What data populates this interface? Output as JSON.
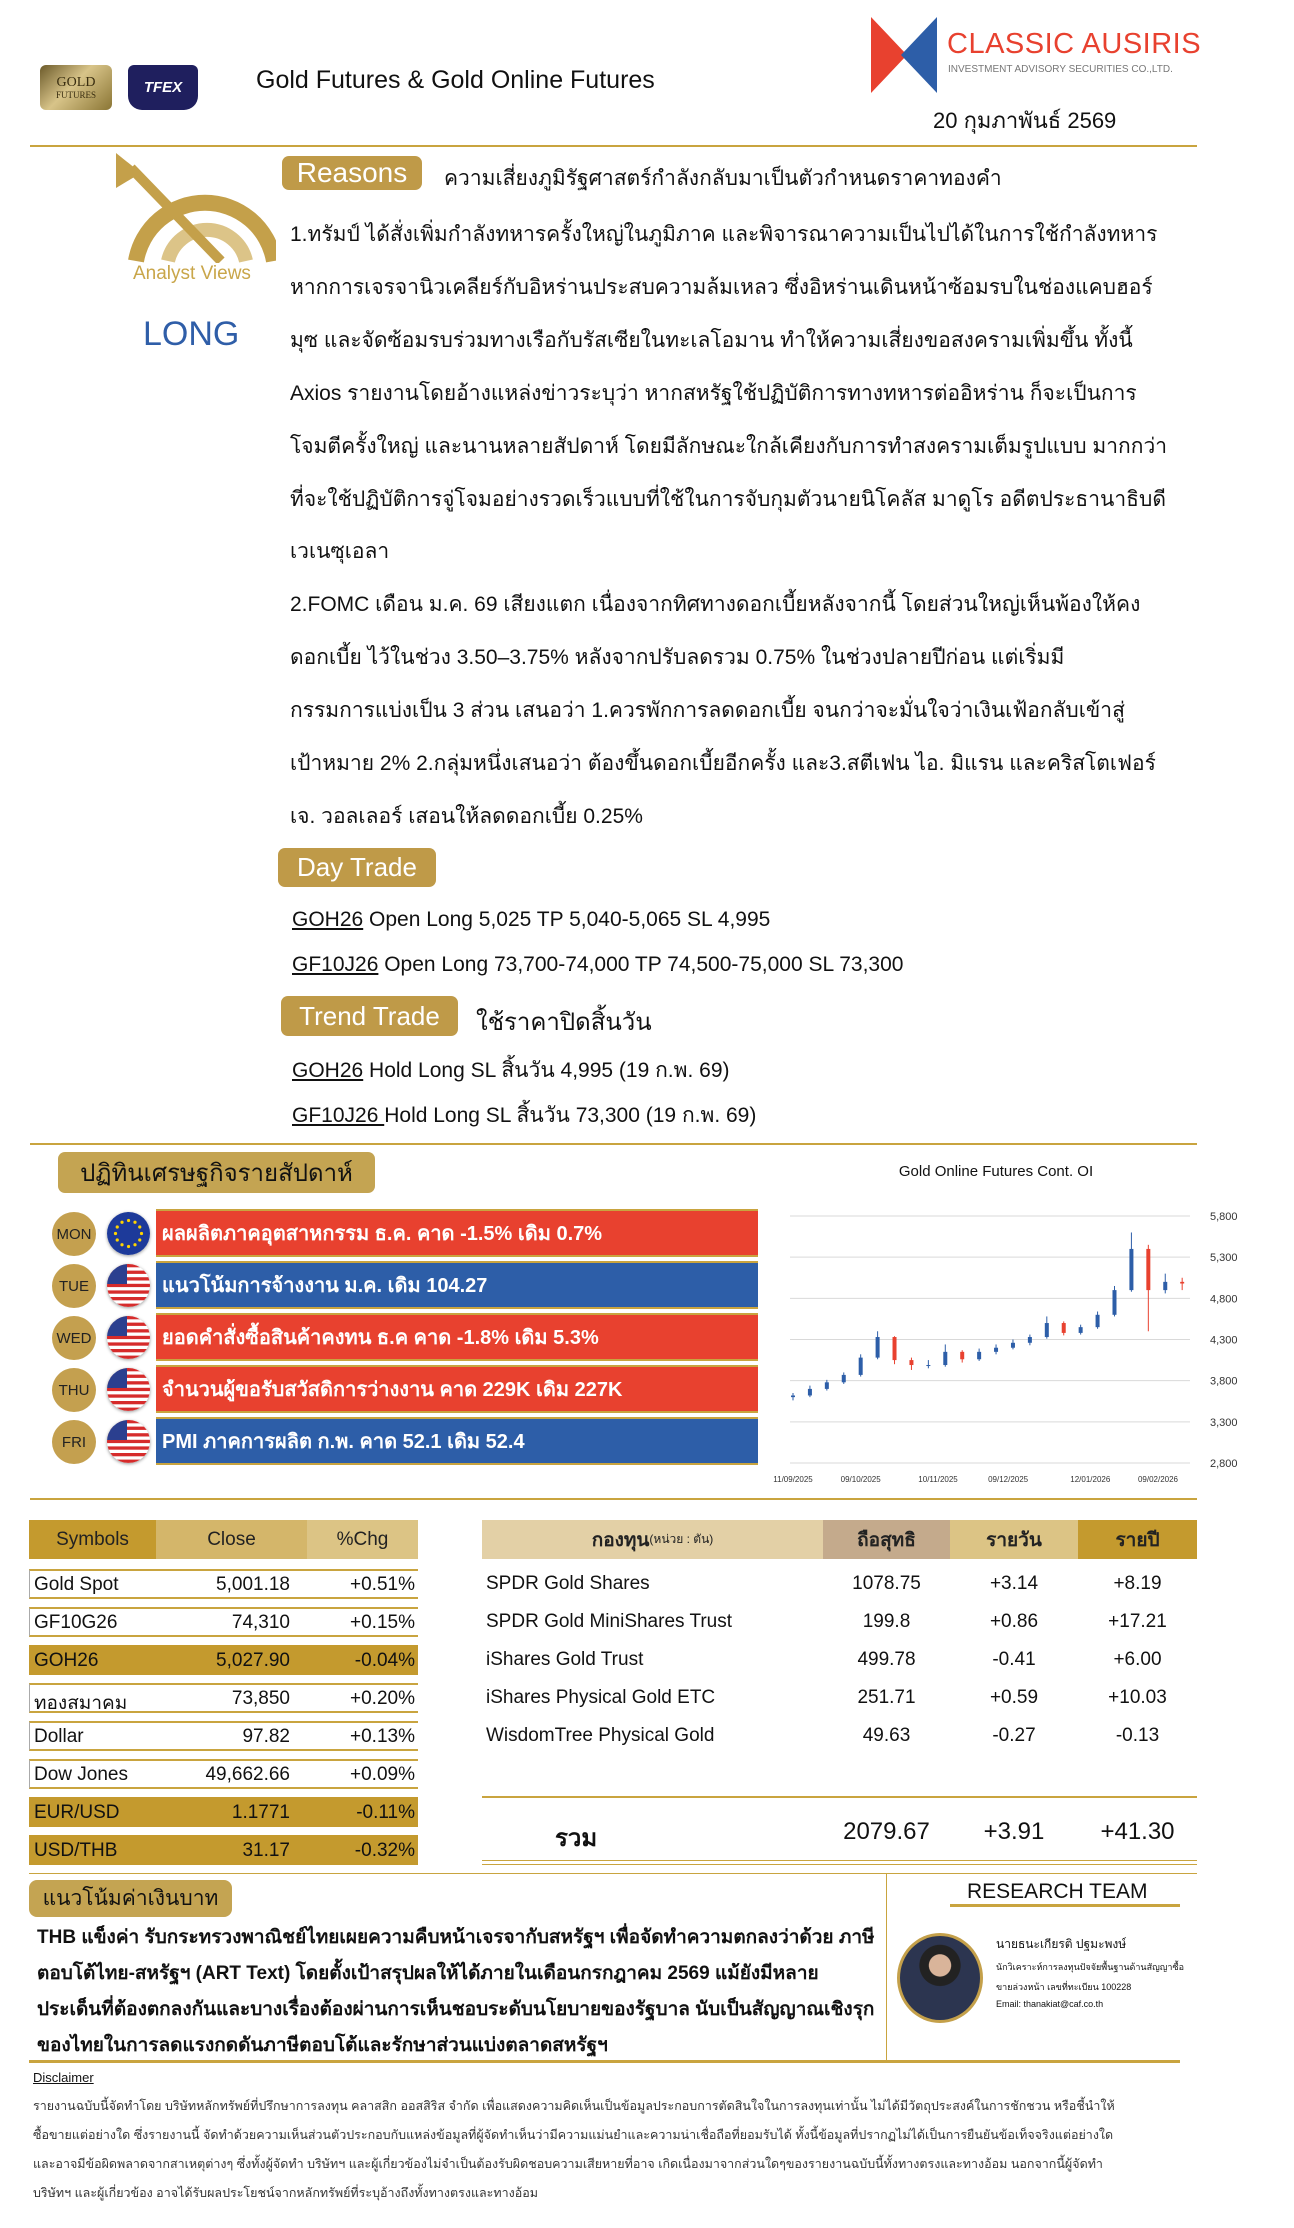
{
  "header": {
    "title": "Gold Futures & Gold Online Futures",
    "gold_futures_logo_text": "GOLD FUTURES TFEX",
    "tfex_logo_text": "TFEX",
    "company_name": "CLASSIC AUSIRIS",
    "company_sub": "INVESTMENT ADVISORY SECURITIES CO.,LTD.",
    "date": "20 กุมภาพันธ์ 2569"
  },
  "analyst": {
    "icon_label": "Analyst Views",
    "view": "LONG",
    "view_color": "#2f5ea8"
  },
  "reasons": {
    "badge": "Reasons",
    "headline": "ความเสี่ยงภูมิรัฐศาสตร์กำลังกลับมาเป็นตัวกำหนดราคาทองคำ",
    "lines": [
      "1.ทรัมป์ ได้สั่งเพิ่มกำลังทหารครั้งใหญ่ในภูมิภาค และพิจารณาความเป็นไปได้ในการใช้กำลังทหาร",
      "หากการเจรจานิวเคลียร์กับอิหร่านประสบความล้มเหลว  ซึ่งอิหร่านเดินหน้าซ้อมรบในช่องแคบฮอร์",
      "มุซ และจัดซ้อมรบร่วมทางเรือกับรัสเซียในทะเลโอมาน ทำให้ความเสี่ยงขอสงครามเพิ่มขึ้น  ทั้งนี้",
      "Axios  รายงานโดยอ้างแหล่งข่าวระบุว่า หากสหรัฐใช้ปฏิบัติการทางทหารต่ออิหร่าน ก็จะเป็นการ",
      "โจมตีครั้งใหญ่ และนานหลายสัปดาห์ โดยมีลักษณะใกล้เคียงกับการทำสงครามเต็มรูปแบบ มากกว่า",
      "ที่จะใช้ปฏิบัติการจู่โจมอย่างรวดเร็วแบบที่ใช้ในการจับกุมตัวนายนิโคลัส มาดูโร อดีตประธานาธิบดี",
      "เวเนซุเอลา",
      "2.FOMC เดือน ม.ค. 69 เสียงแตก เนื่องจากทิศทางดอกเบี้ยหลังจากนี้ โดยส่วนใหญ่เห็นพ้องให้คง",
      "ดอกเบี้ย  ไว้ในช่วง 3.50–3.75% หลังจากปรับลดรวม 0.75% ในช่วงปลายปีก่อน แต่เริ่มมี",
      "กรรมการแบ่งเป็น 3 ส่วน เสนอว่า 1.ควรพักการลดดอกเบี้ย จนกว่าจะมั่นใจว่าเงินเฟ้อกลับเข้าสู่",
      "เป้าหมาย 2% 2.กลุ่มหนึ่งเสนอว่า ต้องขึ้นดอกเบี้ยอีกครั้ง และ3.สตีเฟน ไอ. มิแรน และคริสโตเฟอร์",
      "เจ. วอลเลอร์ เสอนให้ลดดอกเบี้ย 0.25%"
    ]
  },
  "day_trade": {
    "badge": "Day Trade",
    "items": [
      {
        "symbol": "GOH26",
        "text": " Open Long 5,025 TP 5,040-5,065  SL 4,995"
      },
      {
        "symbol": "GF10J26",
        "text": " Open Long 73,700-74,000  TP 74,500-75,000  SL 73,300"
      }
    ]
  },
  "trend_trade": {
    "badge": "Trend Trade",
    "note": "ใช้ราคาปิดสิ้นวัน",
    "items": [
      {
        "symbol": "GOH26",
        "text": " Hold Long SL สิ้นวัน 4,995 (19 ก.พ. 69)"
      },
      {
        "symbol": "GF10J26 ",
        "text": "Hold Long SL สิ้นวัน 73,300  (19 ก.พ. 69)"
      }
    ]
  },
  "calendar": {
    "title": "ปฏิทินเศรษฐกิจรายสัปดาห์",
    "rows": [
      {
        "day": "MON",
        "flag": "eu-flag",
        "color": "#e8412f",
        "text": "ผลผลิตภาคอุตสาหกรรม ธ.ค. คาด -1.5% เดิม 0.7%"
      },
      {
        "day": "TUE",
        "flag": "us-flag",
        "color": "#2d5ea8",
        "text": "แนวโน้มการจ้างงาน ม.ค.  เดิม 104.27"
      },
      {
        "day": "WED",
        "flag": "us-flag",
        "color": "#e8412f",
        "text": "ยอดคำสั่งซื้อสินค้าคงทน ธ.ค คาด -1.8% เดิม 5.3%"
      },
      {
        "day": "THU",
        "flag": "us-flag",
        "color": "#e8412f",
        "text": "จำนวนผู้ขอรับสวัสดิการว่างงาน คาด 229K เดิม 227K"
      },
      {
        "day": "FRI",
        "flag": "us-flag",
        "color": "#2d5ea8",
        "text": "PMI ภาคการผลิต ก.พ.  คาด 52.1 เดิม 52.4"
      }
    ]
  },
  "chart_data": {
    "type": "candlestick",
    "title": "Gold Online Futures Cont. OI",
    "ylim": [
      2800,
      5800
    ],
    "yticks": [
      "5,800",
      "5,300",
      "4,800",
      "4,300",
      "3,800",
      "3,300",
      "2,800"
    ],
    "ytick_values": [
      5800,
      5300,
      4800,
      4300,
      3800,
      3300,
      2800
    ],
    "xticks": [
      "11/09/2025",
      "09/10/2025",
      "10/11/2025",
      "09/12/2025",
      "12/01/2026",
      "09/02/2026"
    ],
    "grid": true,
    "up_color": "#2d5ea8",
    "down_color": "#e8412f",
    "dates": [
      "11/09/2025",
      "18/09/2025",
      "25/09/2025",
      "02/10/2025",
      "09/10/2025",
      "16/10/2025",
      "23/10/2025",
      "30/10/2025",
      "06/11/2025",
      "13/11/2025",
      "20/11/2025",
      "27/11/2025",
      "04/12/2025",
      "11/12/2025",
      "18/12/2025",
      "25/12/2025",
      "01/01/2026",
      "08/01/2026",
      "15/01/2026",
      "22/01/2026",
      "29/01/2026",
      "05/02/2026",
      "12/02/2026",
      "19/02/2026"
    ],
    "open": [
      3600,
      3620,
      3700,
      3780,
      3870,
      4080,
      4330,
      4050,
      3990,
      3990,
      4150,
      4060,
      4150,
      4200,
      4260,
      4330,
      4500,
      4380,
      4450,
      4600,
      4900,
      5400,
      4900,
      5000
    ],
    "close": [
      3620,
      3700,
      3780,
      3870,
      4080,
      4330,
      4050,
      3990,
      3990,
      4150,
      4060,
      4150,
      4200,
      4260,
      4330,
      4500,
      4380,
      4450,
      4600,
      4900,
      5400,
      4900,
      5000,
      4980
    ],
    "high": [
      3650,
      3740,
      3810,
      3900,
      4120,
      4400,
      4340,
      4080,
      4050,
      4240,
      4170,
      4190,
      4240,
      4300,
      4360,
      4580,
      4520,
      4480,
      4640,
      4950,
      5600,
      5450,
      5100,
      5050
    ],
    "low": [
      3560,
      3600,
      3680,
      3760,
      3850,
      4060,
      4000,
      3930,
      3950,
      3970,
      4020,
      4040,
      4120,
      4180,
      4230,
      4310,
      4350,
      4360,
      4430,
      4580,
      4880,
      4400,
      4860,
      4900
    ]
  },
  "market_table": {
    "headers": [
      "Symbols",
      "Close",
      "%Chg"
    ],
    "header_colors": [
      "#c49a2e",
      "#d4b66a",
      "#dcc485"
    ],
    "highlight_color": "#c49a2e",
    "rows": [
      {
        "symbol": "Gold Spot",
        "close": "5,001.18",
        "chg": "+0.51%",
        "highlight": false
      },
      {
        "symbol": "GF10G26",
        "close": "74,310",
        "chg": "+0.15%",
        "highlight": false
      },
      {
        "symbol": "GOH26",
        "close": "5,027.90",
        "chg": "-0.04%",
        "highlight": true
      },
      {
        "symbol": "ทองสมาคม",
        "close": "73,850",
        "chg": "+0.20%",
        "highlight": false
      },
      {
        "symbol": "Dollar",
        "close": "97.82",
        "chg": "+0.13%",
        "highlight": false
      },
      {
        "symbol": "Dow Jones",
        "close": "49,662.66",
        "chg": "+0.09%",
        "highlight": false
      },
      {
        "symbol": "EUR/USD",
        "close": "1.1771",
        "chg": "-0.11%",
        "highlight": true
      },
      {
        "symbol": "USD/THB",
        "close": "31.17",
        "chg": "-0.32%",
        "highlight": true
      }
    ]
  },
  "fund_table": {
    "header_name": "กองทุน",
    "header_unit": "(หน่วย : ตัน)",
    "headers": [
      "ถือสุทธิ",
      "รายวัน",
      "รายปี"
    ],
    "header_colors": [
      "#e3d0a6",
      "#c4aa8c",
      "#dcc485",
      "#c49a2e"
    ],
    "rows": [
      {
        "name": "SPDR Gold Shares",
        "holding": "1078.75",
        "daily": "+3.14",
        "yearly": "+8.19"
      },
      {
        "name": "SPDR Gold MiniShares Trust",
        "holding": "199.8",
        "daily": "+0.86",
        "yearly": "+17.21"
      },
      {
        "name": "iShares Gold Trust",
        "holding": "499.78",
        "daily": "-0.41",
        "yearly": "+6.00"
      },
      {
        "name": "iShares Physical Gold ETC",
        "holding": "251.71",
        "daily": "+0.59",
        "yearly": "+10.03"
      },
      {
        "name": "WisdomTree Physical Gold",
        "holding": "49.63",
        "daily": "-0.27",
        "yearly": "-0.13"
      }
    ],
    "total": {
      "label": "รวม",
      "holding": "2079.67",
      "daily": "+3.91",
      "yearly": "+41.30"
    }
  },
  "thb": {
    "badge": "แนวโน้มค่าเงินบาท",
    "lines": [
      "THB แข็งค่า รับกระทรวงพาณิชย์ไทยเผยความคืบหน้าเจรจากับสหรัฐฯ เพื่อจัดทำความตกลงว่าด้วย ภาษี",
      "ตอบโต้ไทย-สหรัฐฯ (ART Text) โดยตั้งเป้าสรุปผลให้ได้ภายในเดือนกรกฎาคม 2569 แม้ยังมีหลาย",
      "ประเด็นที่ต้องตกลงกันและบางเรื่องต้องผ่านการเห็นชอบระดับนโยบายของรัฐบาล นับเป็นสัญญาณเชิงรุก",
      "ของไทยในการลดแรงกดดันภาษีตอบโต้และรักษาส่วนแบ่งตลาดสหรัฐฯ"
    ]
  },
  "research_team": {
    "title": "RESEARCH TEAM",
    "name": "นายธนะเกียรติ ปฐมะพงษ์",
    "position": "นักวิเคราะห์การลงทุนปัจจัยพื้นฐานด้านสัญญาซื้อ",
    "license": "ขายล่วงหน้า เลขที่ทะเบียน 100228",
    "email": "Email: thanakiat@caf.co.th"
  },
  "disclaimer": {
    "title": "Disclaimer",
    "lines": [
      "รายงานฉบับนี้จัดทำโดย บริษัทหลักทรัพย์ที่ปรึกษาการลงทุน คลาสสิก ออสสิริส จำกัด เพื่อแสดงความคิดเห็นเป็นข้อมูลประกอบการตัดสินใจในการลงทุนเท่านั้น  ไม่ได้มีวัตถุประสงค์ในการชักชวน  หรือชี้นำให้",
      "ซื้อขายแต่อย่างใด ซึ่งรายงานนี้ จัดทำด้วยความเห็นส่วนตัวประกอบกับแหล่งข้อมูลที่ผู้จัดทำเห็นว่ามีความแม่นยำและความน่าเชื่อถือที่ยอมรับได้  ทั้งนี้ข้อมูลที่ปรากฏไม่ได้เป็นการยืนยันข้อเท็จจริงแต่อย่างใด",
      "และอาจมีข้อผิดพลาดจากสาเหตุต่างๆ  ซึ่งทั้งผู้จัดทำ  บริษัทฯ  และผู้เกี่ยวข้องไม่จำเป็นต้องรับผิดชอบความเสียหายที่อาจ  เกิดเนื่องมาจากส่วนใดๆของรายงานฉบับนี้ทั้งทางตรงและทางอ้อม  นอกจากนี้ผู้จัดทำ",
      "บริษัทฯ และผู้เกี่ยวข้อง  อาจได้รับผลประโยชน์จากหลักทรัพย์ที่ระบุอ้างถึงทั้งทางตรงและทางอ้อม"
    ]
  }
}
